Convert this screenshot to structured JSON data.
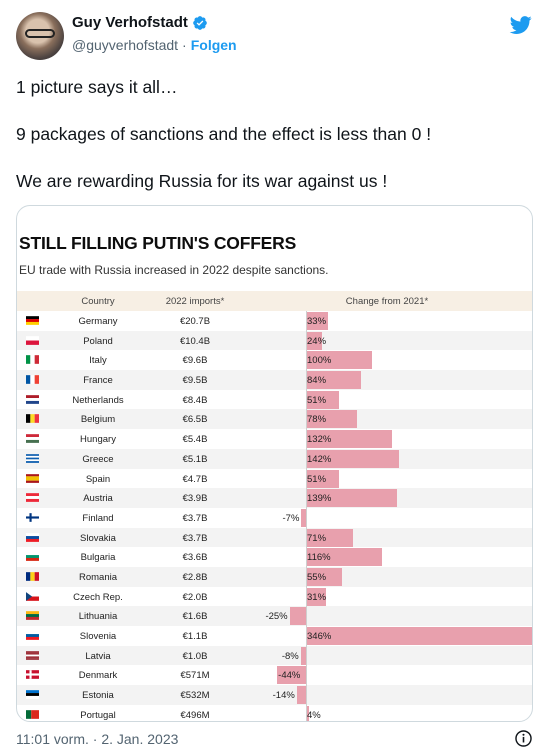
{
  "author": {
    "display_name": "Guy Verhofstadt",
    "handle": "@guyverhofstadt",
    "separator": "·",
    "follow_label": "Folgen",
    "avatar_icon": "profile-photo",
    "verified_icon": "verified-badge-icon",
    "brand_icon": "twitter-bird-icon",
    "brand_color": "#1d9bf0"
  },
  "tweet": {
    "lines": [
      "1 picture says it all…",
      "9 packages of sanctions and the effect is less than 0 !",
      "We are rewarding Russia for its war against us !"
    ],
    "timestamp": "11:01 vorm. · 2. Jan. 2023",
    "info_icon": "info-icon"
  },
  "chart_data": {
    "type": "bar",
    "title": "STILL FILLING PUTIN'S COFFERS",
    "subtitle": "EU trade with Russia increased in 2022 despite sanctions.",
    "columns": [
      "Country",
      "2022 imports*",
      "Change from 2021*"
    ],
    "bar_color": "#e8a0ad",
    "rows": [
      {
        "country": "Germany",
        "imports": "€20.7B",
        "change": 33,
        "label": "33%",
        "flag": "germany-flag"
      },
      {
        "country": "Poland",
        "imports": "€10.4B",
        "change": 24,
        "label": "24%",
        "flag": "poland-flag"
      },
      {
        "country": "Italy",
        "imports": "€9.6B",
        "change": 100,
        "label": "100%",
        "flag": "italy-flag"
      },
      {
        "country": "France",
        "imports": "€9.5B",
        "change": 84,
        "label": "84%",
        "flag": "france-flag"
      },
      {
        "country": "Netherlands",
        "imports": "€8.4B",
        "change": 51,
        "label": "51%",
        "flag": "netherlands-flag"
      },
      {
        "country": "Belgium",
        "imports": "€6.5B",
        "change": 78,
        "label": "78%",
        "flag": "belgium-flag"
      },
      {
        "country": "Hungary",
        "imports": "€5.4B",
        "change": 132,
        "label": "132%",
        "flag": "hungary-flag"
      },
      {
        "country": "Greece",
        "imports": "€5.1B",
        "change": 142,
        "label": "142%",
        "flag": "greece-flag"
      },
      {
        "country": "Spain",
        "imports": "€4.7B",
        "change": 51,
        "label": "51%",
        "flag": "spain-flag"
      },
      {
        "country": "Austria",
        "imports": "€3.9B",
        "change": 139,
        "label": "139%",
        "flag": "austria-flag"
      },
      {
        "country": "Finland",
        "imports": "€3.7B",
        "change": -7,
        "label": "-7%",
        "flag": "finland-flag"
      },
      {
        "country": "Slovakia",
        "imports": "€3.7B",
        "change": 71,
        "label": "71%",
        "flag": "slovakia-flag"
      },
      {
        "country": "Bulgaria",
        "imports": "€3.6B",
        "change": 116,
        "label": "116%",
        "flag": "bulgaria-flag"
      },
      {
        "country": "Romania",
        "imports": "€2.8B",
        "change": 55,
        "label": "55%",
        "flag": "romania-flag"
      },
      {
        "country": "Czech Rep.",
        "imports": "€2.0B",
        "change": 31,
        "label": "31%",
        "flag": "czech-flag"
      },
      {
        "country": "Lithuania",
        "imports": "€1.6B",
        "change": -25,
        "label": "-25%",
        "flag": "lithuania-flag"
      },
      {
        "country": "Slovenia",
        "imports": "€1.1B",
        "change": 346,
        "label": "346%",
        "flag": "slovenia-flag"
      },
      {
        "country": "Latvia",
        "imports": "€1.0B",
        "change": -8,
        "label": "-8%",
        "flag": "latvia-flag"
      },
      {
        "country": "Denmark",
        "imports": "€571M",
        "change": -44,
        "label": "-44%",
        "flag": "denmark-flag"
      },
      {
        "country": "Estonia",
        "imports": "€532M",
        "change": -14,
        "label": "-14%",
        "flag": "estonia-flag"
      },
      {
        "country": "Portugal",
        "imports": "€496M",
        "change": 4,
        "label": "4%",
        "flag": "portugal-flag"
      }
    ]
  }
}
